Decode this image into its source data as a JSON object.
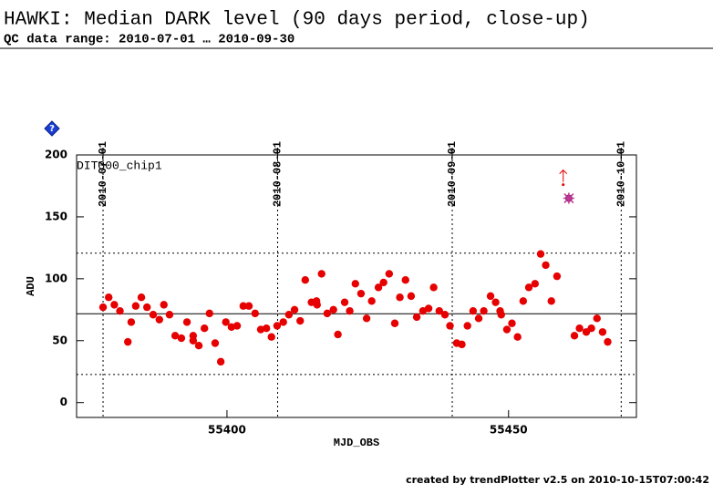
{
  "chart_data": {
    "type": "scatter",
    "title": "HAWKI: Median DARK level (90 days period, close-up)",
    "subtitle": "QC data range: 2010-07-01 … 2010-09-30",
    "panel_label": "DIT300_chip1",
    "help_icon": "?",
    "xlabel": "MJD_OBS",
    "ylabel": "ADU",
    "footer": "created by trendPlotter v2.5 on 2010-10-15T07:00:42",
    "xlim": [
      55373.3,
      55472.7
    ],
    "ylim": [
      -12,
      200
    ],
    "xticks": [
      55400,
      55450
    ],
    "yticks": [
      0,
      50,
      100,
      150,
      200
    ],
    "x2ticks": [
      {
        "value": 55378,
        "label": "2010-07-01"
      },
      {
        "value": 55409,
        "label": "2010-08-01"
      },
      {
        "value": 55440,
        "label": "2010-09-01"
      },
      {
        "value": 55470,
        "label": "2010-10-01"
      }
    ],
    "hlines": [
      {
        "value": 71.7,
        "style": "solid"
      },
      {
        "value": 120.7,
        "style": "dotted"
      },
      {
        "value": 22.7,
        "style": "dotted"
      }
    ],
    "series": [
      {
        "color": "#e60000",
        "marker": "dot",
        "x": [
          55378.0,
          55379.0,
          55380.0,
          55381.0,
          55382.4,
          55383.0,
          55383.8,
          55384.8,
          55385.8,
          55386.9,
          55388.0,
          55388.8,
          55389.8,
          55390.8,
          55391.9,
          55392.9,
          55394.0,
          55394.0,
          55395.0,
          55396.0,
          55396.9,
          55397.9,
          55398.9,
          55399.8,
          55400.8,
          55401.8,
          55402.9,
          55403.9,
          55405.0,
          55406.0,
          55407.0,
          55407.9,
          55408.9,
          55410.0,
          55411.0,
          55412.0,
          55413.0,
          55413.9,
          55415.0,
          55415.9,
          55416.0,
          55416.8,
          55417.8,
          55418.9,
          55419.7,
          55420.9,
          55421.8,
          55422.8,
          55423.8,
          55424.8,
          55425.7,
          55426.9,
          55427.8,
          55428.8,
          55429.8,
          55430.7,
          55431.7,
          55432.7,
          55433.7,
          55434.8,
          55435.8,
          55436.7,
          55437.7,
          55438.7,
          55439.6,
          55440.8,
          55441.7,
          55442.7,
          55443.7,
          55444.7,
          55445.6,
          55446.8,
          55447.7,
          55448.5,
          55448.7,
          55449.7,
          55450.6,
          55451.6,
          55452.6,
          55453.6,
          55454.7,
          55455.7,
          55456.6,
          55457.6,
          55458.6,
          55461.7,
          55462.6,
          55463.8,
          55464.7,
          55465.7,
          55466.7,
          55467.6
        ],
        "values": [
          77,
          85,
          79,
          74,
          49,
          65,
          78,
          85,
          77,
          71,
          67,
          79,
          71,
          54,
          52,
          65,
          54,
          50,
          46,
          60,
          72,
          48,
          33,
          65,
          61,
          62,
          78,
          78,
          72,
          59,
          60,
          53,
          62,
          65,
          71,
          75,
          66,
          99,
          81,
          82,
          79,
          104,
          72,
          75,
          55,
          81,
          74,
          96,
          88,
          68,
          82,
          93,
          97,
          104,
          64,
          85,
          99,
          86,
          69,
          74,
          76,
          93,
          74,
          71,
          62,
          48,
          47,
          62,
          74,
          68,
          74,
          86,
          81,
          74,
          71,
          59,
          64,
          53,
          82,
          93,
          96,
          120,
          111,
          82,
          102,
          54,
          60,
          57,
          60,
          68,
          57,
          49
        ]
      },
      {
        "color": "#7a1fa2",
        "marker": "star",
        "x": [
          55460.7
        ],
        "values": [
          165
        ]
      },
      {
        "color": "#e60000",
        "marker": "arrow",
        "x": [
          55459.7
        ],
        "values": [
          176
        ]
      }
    ]
  }
}
